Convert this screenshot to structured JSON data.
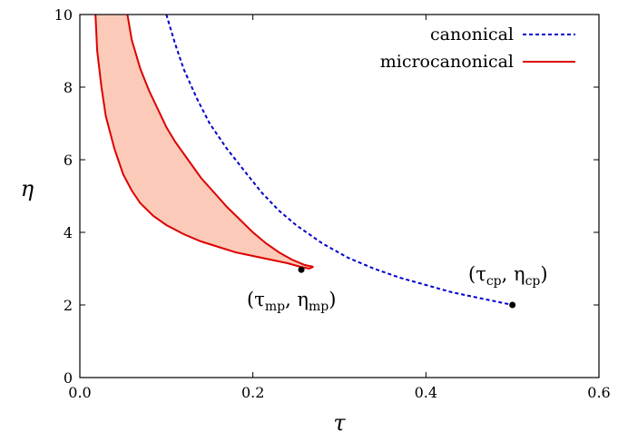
{
  "chart_data": {
    "type": "line",
    "xlabel": "τ",
    "ylabel": "η",
    "xlim": [
      0,
      0.6
    ],
    "ylim": [
      0,
      10
    ],
    "xticks": [
      "0.0",
      "0.2",
      "0.4",
      "0.6"
    ],
    "yticks": [
      "0",
      "2",
      "4",
      "6",
      "8",
      "10"
    ],
    "legend_position": "top-right",
    "grid": false,
    "series": [
      {
        "name": "canonical",
        "style": "dashed",
        "color": "#0000cc",
        "x": [
          0.1,
          0.11,
          0.12,
          0.135,
          0.15,
          0.17,
          0.19,
          0.21,
          0.23,
          0.25,
          0.28,
          0.31,
          0.34,
          0.37,
          0.4,
          0.43,
          0.46,
          0.5
        ],
        "y": [
          10.0,
          9.2,
          8.5,
          7.7,
          7.0,
          6.3,
          5.7,
          5.1,
          4.6,
          4.2,
          3.7,
          3.3,
          3.0,
          2.75,
          2.55,
          2.35,
          2.2,
          2.0
        ]
      },
      {
        "name": "microcanonical",
        "style": "solid",
        "color": "#dd0000",
        "fill": "#fccab8",
        "upper_branch": {
          "x": [
            0.055,
            0.06,
            0.07,
            0.08,
            0.09,
            0.1,
            0.11,
            0.125,
            0.14,
            0.155,
            0.17,
            0.185,
            0.2,
            0.215,
            0.23,
            0.245,
            0.26,
            0.27
          ],
          "y": [
            10.0,
            9.3,
            8.5,
            7.9,
            7.4,
            6.9,
            6.5,
            6.0,
            5.5,
            5.1,
            4.7,
            4.35,
            4.0,
            3.7,
            3.45,
            3.25,
            3.1,
            3.05
          ]
        },
        "lower_branch": {
          "x": [
            0.018,
            0.02,
            0.025,
            0.03,
            0.04,
            0.05,
            0.06,
            0.07,
            0.085,
            0.1,
            0.12,
            0.14,
            0.16,
            0.18,
            0.2,
            0.22,
            0.24,
            0.255,
            0.265,
            0.27
          ],
          "y": [
            10.0,
            9.0,
            8.0,
            7.2,
            6.3,
            5.6,
            5.15,
            4.8,
            4.45,
            4.2,
            3.95,
            3.75,
            3.6,
            3.45,
            3.35,
            3.25,
            3.15,
            3.05,
            3.0,
            3.05
          ]
        }
      }
    ],
    "points": [
      {
        "x": 0.256,
        "y": 2.97,
        "label_main": "(τ",
        "label_sub1": "mp",
        "label_mid": ", η",
        "label_sub2": "mp",
        "label_end": ")"
      },
      {
        "x": 0.5,
        "y": 2.0,
        "label_main": "(τ",
        "label_sub1": "cp",
        "label_mid": ", η",
        "label_sub2": "cp",
        "label_end": ")"
      }
    ]
  }
}
